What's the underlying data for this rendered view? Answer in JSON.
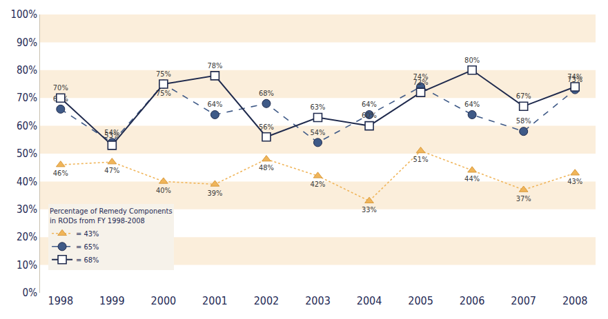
{
  "chart_data": {
    "type": "line",
    "categories": [
      "1998",
      "1999",
      "2000",
      "2001",
      "2002",
      "2003",
      "2004",
      "2005",
      "2006",
      "2007",
      "2008"
    ],
    "series": [
      {
        "name": "= 43%",
        "color": "#f0b55a",
        "marker": "triangle-up",
        "line_style": "dot",
        "values": [
          46,
          47,
          40,
          39,
          48,
          42,
          33,
          51,
          44,
          37,
          43
        ],
        "value_labels": [
          "46%",
          "47%",
          "40%",
          "39%",
          "48%",
          "42%",
          "33%",
          "51%",
          "44%",
          "37%",
          "43%"
        ]
      },
      {
        "name": "= 65%",
        "color": "#3f5a87",
        "marker": "circle",
        "line_style": "dash",
        "values": [
          66,
          54,
          75,
          64,
          68,
          54,
          64,
          74,
          64,
          58,
          73
        ],
        "value_labels": [
          "66%",
          "54%",
          "75%",
          "64%",
          "68%",
          "54%",
          "64%",
          "74%",
          "64%",
          "58%",
          "73%"
        ]
      },
      {
        "name": "= 68%",
        "color": "#1f2a4d",
        "marker": "square-open",
        "line_style": "solid",
        "values": [
          70,
          53,
          75,
          78,
          56,
          63,
          60,
          72,
          80,
          67,
          74
        ],
        "value_labels": [
          "70%",
          "53%",
          "75%",
          "78%",
          "56%",
          "63%",
          "60%",
          "72%",
          "80%",
          "67%",
          "74%"
        ]
      }
    ],
    "legend_title": [
      "Percentage of Remedy Components",
      "in RODs from FY 1998-2008"
    ],
    "legend": "lower left",
    "ylim": [
      0,
      100
    ],
    "yticks": [
      {
        "value": 0,
        "label": "0%"
      },
      {
        "value": 10,
        "label": "10%"
      },
      {
        "value": 20,
        "label": "20%"
      },
      {
        "value": 30,
        "label": "30%"
      },
      {
        "value": 40,
        "label": "40%"
      },
      {
        "value": 50,
        "label": "50%"
      },
      {
        "value": 60,
        "label": "60%"
      },
      {
        "value": 70,
        "label": "70%"
      },
      {
        "value": 80,
        "label": "80%"
      },
      {
        "value": 90,
        "label": "90%"
      },
      {
        "value": 100,
        "label": "100%"
      }
    ],
    "grid": false,
    "data_labels": true
  }
}
